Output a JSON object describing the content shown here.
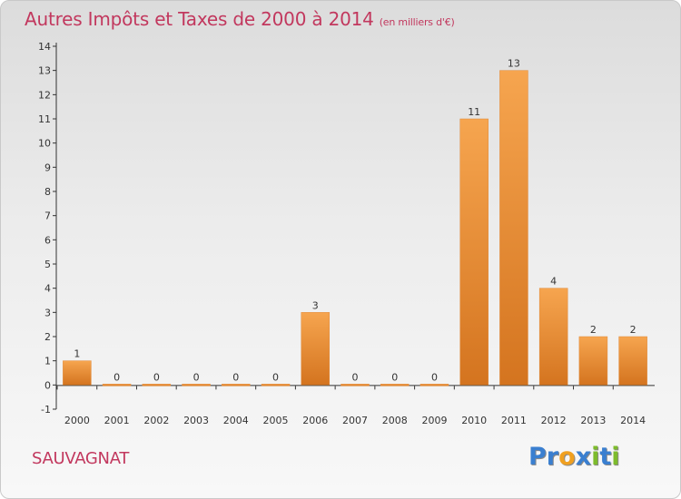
{
  "chart_data": {
    "type": "bar",
    "title": "Autres Impôts et Taxes de 2000 à 2014",
    "subtitle": "(en milliers d'€)",
    "categories": [
      "2000",
      "2001",
      "2002",
      "2003",
      "2004",
      "2005",
      "2006",
      "2007",
      "2008",
      "2009",
      "2010",
      "2011",
      "2012",
      "2013",
      "2014"
    ],
    "values": [
      1,
      0,
      0,
      0,
      0,
      0,
      3,
      0,
      0,
      0,
      11,
      13,
      4,
      2,
      2
    ],
    "yticks": [
      -1,
      0,
      1,
      2,
      3,
      4,
      5,
      6,
      7,
      8,
      9,
      10,
      11,
      12,
      13,
      14
    ],
    "ylim": [
      -1,
      14
    ],
    "xlabel": "",
    "ylabel": "",
    "grid": false,
    "colors": {
      "bar_light": "#f6a54f",
      "bar_dark": "#d4741f",
      "axis": "#333333",
      "title": "#c2385e"
    }
  },
  "commune": "SAUVAGNAT",
  "logo": {
    "letters": [
      {
        "ch": "P",
        "color": "#3a7fd0"
      },
      {
        "ch": "r",
        "color": "#3a7fd0"
      },
      {
        "ch": "o",
        "color": "#f0a020"
      },
      {
        "ch": "x",
        "color": "#3a7fd0"
      },
      {
        "ch": "i",
        "color": "#7dbb2c"
      },
      {
        "ch": "t",
        "color": "#3a7fd0"
      },
      {
        "ch": "i",
        "color": "#7dbb2c"
      }
    ]
  }
}
